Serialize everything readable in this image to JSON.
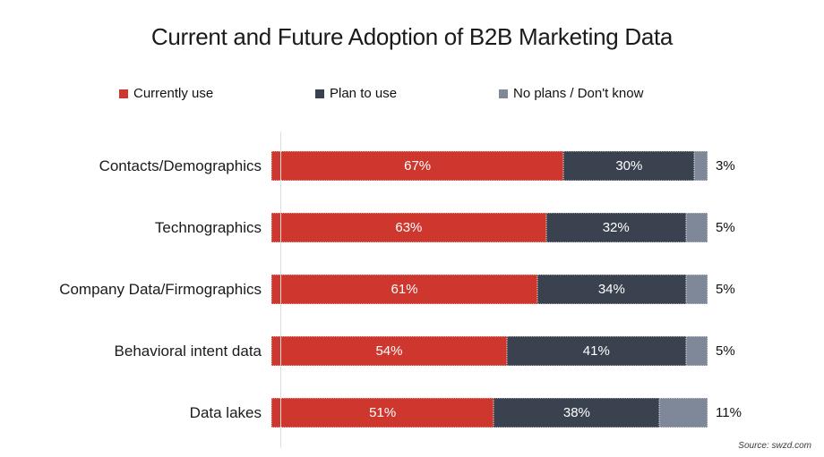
{
  "chart_data": {
    "type": "bar",
    "orientation": "horizontal",
    "stacked": true,
    "title": "Current and Future Adoption of B2B Marketing Data",
    "categories": [
      "Contacts/Demographics",
      "Technographics",
      "Company Data/Firmographics",
      "Behavioral intent data",
      "Data lakes"
    ],
    "series": [
      {
        "name": "Currently use",
        "color": "#ce372e",
        "values": [
          67,
          63,
          61,
          54,
          51
        ]
      },
      {
        "name": "Plan to use",
        "color": "#3a4250",
        "values": [
          30,
          32,
          34,
          41,
          38
        ]
      },
      {
        "name": "No plans / Don't know",
        "color": "#7e8898",
        "values": [
          3,
          5,
          5,
          5,
          11
        ]
      }
    ],
    "value_suffix": "%",
    "xlim": [
      0,
      100
    ],
    "grid": false,
    "legend_position": "top",
    "source": "Source: swzd.com"
  }
}
